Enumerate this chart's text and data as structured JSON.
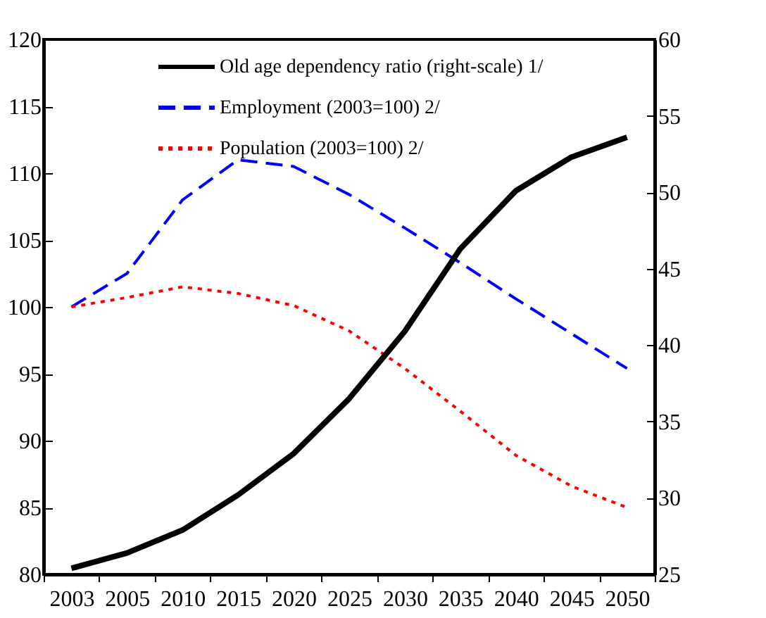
{
  "chart_data": {
    "type": "line",
    "categories": [
      "2003",
      "2005",
      "2010",
      "2015",
      "2020",
      "2025",
      "2030",
      "2035",
      "2040",
      "2045",
      "2050"
    ],
    "series": [
      {
        "name": "Old age dependency ratio (right-scale) 1/",
        "color": "#000000",
        "axis": "y2",
        "line_style": "solid",
        "values": [
          25.4,
          26.4,
          27.9,
          30.2,
          32.9,
          36.5,
          40.9,
          46.3,
          50.1,
          52.3,
          53.6
        ]
      },
      {
        "name": "Employment (2003=100) 2/",
        "color": "#0000ff",
        "line_style": "dashed",
        "values": [
          100,
          102.5,
          108,
          111,
          110.5,
          108.4,
          105.9,
          103.3,
          100.6,
          98.0,
          95.4
        ]
      },
      {
        "name": "Population (2003=100) 2/",
        "color": "#ff0000",
        "line_style": "dotted",
        "values": [
          100,
          100.7,
          101.5,
          101.0,
          100.1,
          98.2,
          95.4,
          92.2,
          88.9,
          86.6,
          85.0
        ]
      }
    ],
    "ylim": [
      80,
      120
    ],
    "yticks": [
      80,
      85,
      90,
      95,
      100,
      105,
      110,
      115,
      120
    ],
    "y2lim": [
      25,
      60
    ],
    "y2ticks": [
      25,
      30,
      35,
      40,
      45,
      50,
      55,
      60
    ],
    "grid": false,
    "legend": "top",
    "marker": "none"
  }
}
